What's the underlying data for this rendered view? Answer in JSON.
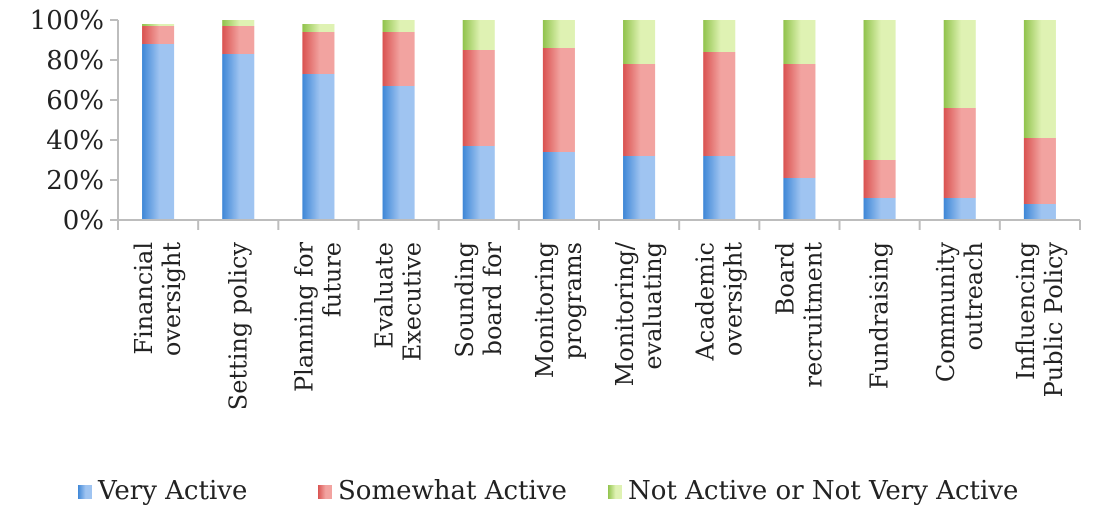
{
  "chart_data": {
    "type": "bar",
    "stacked": true,
    "percent_axis": true,
    "categories": [
      [
        "Financial",
        "oversight"
      ],
      [
        "Setting policy"
      ],
      [
        "Planning for",
        "future"
      ],
      [
        "Evaluate",
        "Executive"
      ],
      [
        "Sounding",
        "board for"
      ],
      [
        "Monitoring",
        "programs"
      ],
      [
        "Monitoring/",
        "evaluating"
      ],
      [
        "Academic",
        "oversight"
      ],
      [
        "Board",
        "recruitment"
      ],
      [
        "Fundraising"
      ],
      [
        "Community",
        "outreach"
      ],
      [
        "Influencing",
        "Public Policy"
      ]
    ],
    "series": [
      {
        "name": "Very Active",
        "values": [
          88,
          83,
          73,
          67,
          37,
          34,
          32,
          32,
          21,
          11,
          11,
          8
        ]
      },
      {
        "name": "Somewhat Active",
        "values": [
          9,
          14,
          21,
          27,
          48,
          52,
          46,
          52,
          57,
          19,
          45,
          33
        ]
      },
      {
        "name": "Not Active or Not Very Active",
        "values": [
          1,
          3,
          4,
          6,
          15,
          14,
          22,
          16,
          22,
          70,
          44,
          59
        ]
      }
    ],
    "yticks": [
      "0%",
      "20%",
      "40%",
      "60%",
      "80%",
      "100%"
    ],
    "ylim": [
      0,
      100
    ],
    "title": "",
    "xlabel": "",
    "ylabel": "",
    "legend_position": "bottom",
    "colors": {
      "very_active": [
        "#3d86d6",
        "#9fc4f1"
      ],
      "somewhat_active": [
        "#d9514f",
        "#f2a3a0"
      ],
      "not_active": [
        "#8fc24a",
        "#dff2b3"
      ],
      "axis": "#bdbdbd"
    }
  }
}
